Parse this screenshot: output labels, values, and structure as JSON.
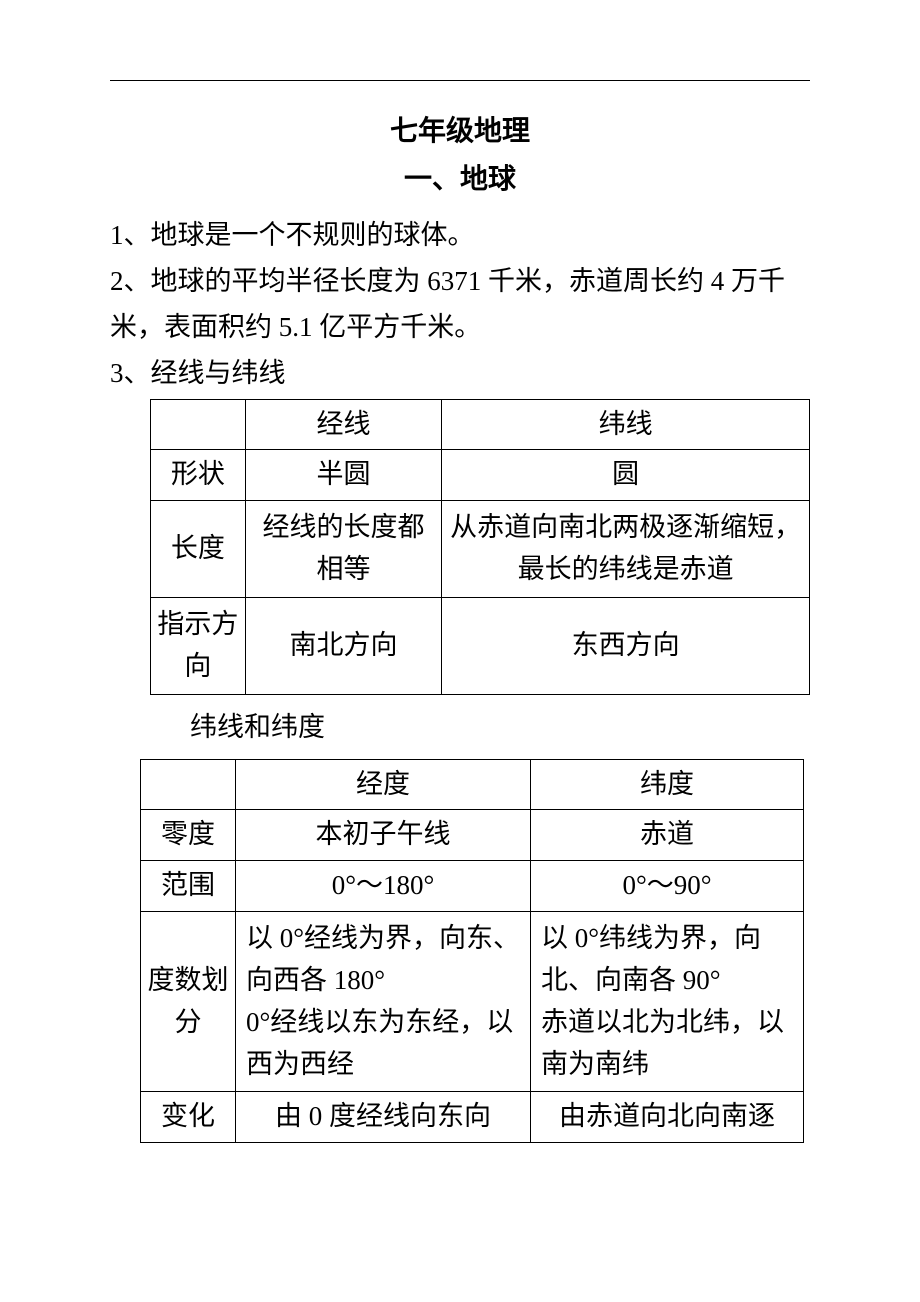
{
  "title": "七年级地理",
  "subtitle": "一、地球",
  "paragraphs": {
    "p1": "1、地球是一个不规则的球体。",
    "p2": "2、地球的平均半径长度为 6371 千米，赤道周长约 4 万千米，表面积约 5.1 亿平方千米。",
    "p3": "3、经线与纬线"
  },
  "table1": {
    "header": {
      "c0": "",
      "c1": "经线",
      "c2": "纬线"
    },
    "rows": [
      {
        "label": "形状",
        "c1": "半圆",
        "c2": "圆"
      },
      {
        "label": "长度",
        "c1": "经线的长度都相等",
        "c2": "从赤道向南北两极逐渐缩短，最长的纬线是赤道"
      },
      {
        "label": "指示方向",
        "c1": "南北方向",
        "c2": "东西方向"
      }
    ]
  },
  "midlabel": "纬线和纬度",
  "table2": {
    "header": {
      "c0": "",
      "c1": "经度",
      "c2": "纬度"
    },
    "rows": [
      {
        "label": "零度",
        "c1": "本初子午线",
        "c2": "赤道"
      },
      {
        "label": "范围",
        "c1": "0°～180°",
        "c2": "0°～90°"
      },
      {
        "label": "度数划分",
        "c1": "以 0°经线为界，向东、向西各 180°\n0°经线以东为东经，以西为西经",
        "c2": "以 0°纬线为界，向北、向南各 90°\n赤道以北为北纬，以南为南纬"
      },
      {
        "label": "变化",
        "c1": "由 0 度经线向东向",
        "c2": "由赤道向北向南逐"
      }
    ]
  },
  "colors": {
    "text": "#000000",
    "background": "#ffffff",
    "border": "#000000"
  }
}
